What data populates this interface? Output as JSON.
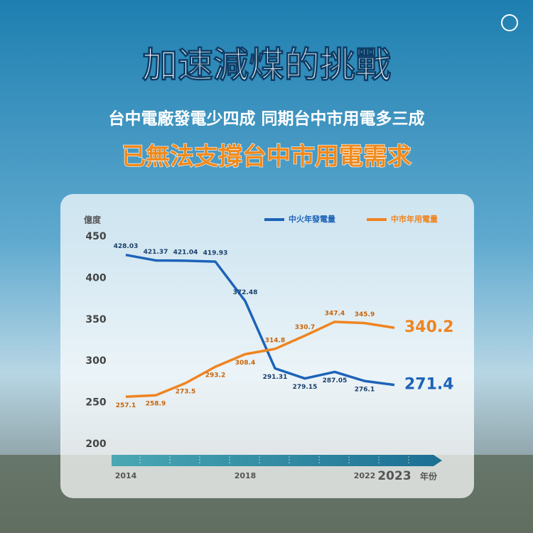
{
  "chart_data": {
    "type": "line",
    "title": "加速減煤的挑戰",
    "subtitle": "台中電廠發電少四成 同期台中市用電多三成",
    "headline": "已無法支撐台中市用電需求",
    "y_label": "億度",
    "x_label": "年份",
    "categories": [
      "2014",
      null,
      null,
      null,
      "2018",
      null,
      null,
      null,
      "2022",
      "2023"
    ],
    "series": [
      {
        "name": "中火年發電量",
        "color": "#1d63b8",
        "values": [
          428.03,
          421.37,
          421.04,
          419.93,
          372.48,
          291.31,
          279.15,
          287.05,
          276.1,
          271.4
        ]
      },
      {
        "name": "中市年用電量",
        "color": "#ef8420",
        "values": [
          257.1,
          258.9,
          273.5,
          293.2,
          308.4,
          314.8,
          330.7,
          347.4,
          345.9,
          340.2
        ]
      }
    ],
    "ylim": [
      200,
      450
    ],
    "yticks": [
      200,
      250,
      300,
      350,
      400,
      450
    ],
    "grid": false,
    "legend": "top-right"
  }
}
